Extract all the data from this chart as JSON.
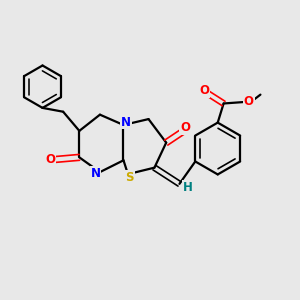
{
  "background_color": "#e8e8e8",
  "bond_color": "#000000",
  "N_color": "#0000ff",
  "O_color": "#ff0000",
  "S_color": "#ccaa00",
  "H_color": "#008080",
  "figsize": [
    3.0,
    3.0
  ],
  "dpi": 100,
  "xlim": [
    0,
    10
  ],
  "ylim": [
    0,
    10
  ]
}
